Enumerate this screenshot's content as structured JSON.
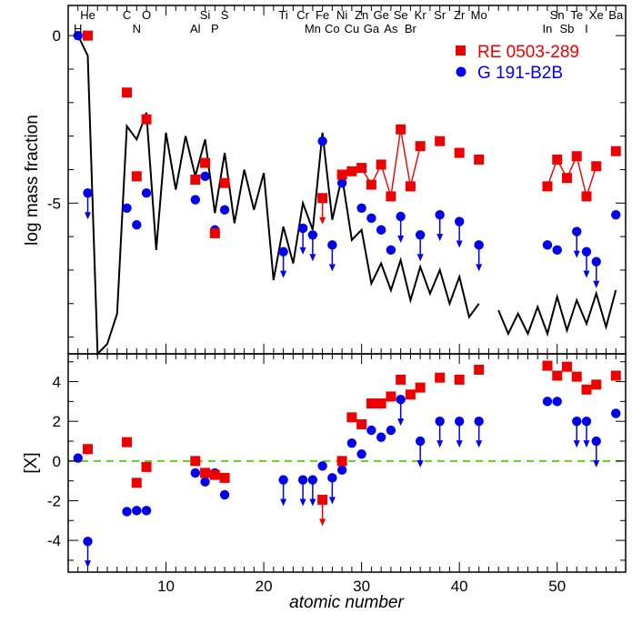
{
  "colors": {
    "re": "#ee0000",
    "g": "#0000ee",
    "zero_line": "#66cc22",
    "model": "#000000"
  },
  "chart_data": {
    "type": "scatter",
    "xlabel": "atomic number",
    "xlim": [
      0,
      57
    ],
    "x_ticks": [
      10,
      20,
      30,
      40,
      50
    ],
    "legend": {
      "position": "top-right",
      "entries": [
        {
          "label": "RE 0503-289",
          "marker": "square",
          "color": "#ee0000"
        },
        {
          "label": "G 191-B2B",
          "marker": "circle",
          "color": "#0000ee"
        }
      ]
    },
    "element_labels": [
      {
        "symbol": "H",
        "z": 1,
        "row": 2
      },
      {
        "symbol": "He",
        "z": 2,
        "row": 1
      },
      {
        "symbol": "C",
        "z": 6,
        "row": 1
      },
      {
        "symbol": "N",
        "z": 7,
        "row": 2
      },
      {
        "symbol": "O",
        "z": 8,
        "row": 1
      },
      {
        "symbol": "Al",
        "z": 13,
        "row": 2
      },
      {
        "symbol": "Si",
        "z": 14,
        "row": 1
      },
      {
        "symbol": "P",
        "z": 15,
        "row": 2
      },
      {
        "symbol": "S",
        "z": 16,
        "row": 1
      },
      {
        "symbol": "Ti",
        "z": 22,
        "row": 1
      },
      {
        "symbol": "Cr",
        "z": 24,
        "row": 1
      },
      {
        "symbol": "Mn",
        "z": 25,
        "row": 2
      },
      {
        "symbol": "Fe",
        "z": 26,
        "row": 1
      },
      {
        "symbol": "Co",
        "z": 27,
        "row": 2
      },
      {
        "symbol": "Ni",
        "z": 28,
        "row": 1
      },
      {
        "symbol": "Cu",
        "z": 29,
        "row": 2
      },
      {
        "symbol": "Zn",
        "z": 30,
        "row": 1
      },
      {
        "symbol": "Ga",
        "z": 31,
        "row": 2
      },
      {
        "symbol": "Ge",
        "z": 32,
        "row": 1
      },
      {
        "symbol": "As",
        "z": 33,
        "row": 2
      },
      {
        "symbol": "Se",
        "z": 34,
        "row": 1
      },
      {
        "symbol": "Br",
        "z": 35,
        "row": 2
      },
      {
        "symbol": "Kr",
        "z": 36,
        "row": 1
      },
      {
        "symbol": "Sr",
        "z": 38,
        "row": 1
      },
      {
        "symbol": "Zr",
        "z": 40,
        "row": 1
      },
      {
        "symbol": "Mo",
        "z": 42,
        "row": 1
      },
      {
        "symbol": "In",
        "z": 49,
        "row": 2
      },
      {
        "symbol": "Sn",
        "z": 50,
        "row": 1
      },
      {
        "symbol": "Sb",
        "z": 51,
        "row": 2
      },
      {
        "symbol": "Te",
        "z": 52,
        "row": 1
      },
      {
        "symbol": "I",
        "z": 53,
        "row": 2
      },
      {
        "symbol": "Xe",
        "z": 54,
        "row": 1
      },
      {
        "symbol": "Ba",
        "z": 56,
        "row": 1
      }
    ],
    "panels": [
      {
        "ylabel": "log mass fraction",
        "ylim": [
          -9.5,
          0.9
        ],
        "y_ticks": [
          0,
          -5
        ],
        "model_solar": {
          "segments": [
            [
              [
                1,
                0
              ],
              [
                2,
                -0.6
              ],
              [
                3,
                -9.5
              ],
              [
                4,
                -9.2
              ],
              [
                5,
                -8.3
              ],
              [
                6,
                -2.7
              ],
              [
                7,
                -3.1
              ],
              [
                8,
                -2.3
              ],
              [
                9,
                -6.4
              ],
              [
                10,
                -2.9
              ],
              [
                11,
                -4.6
              ],
              [
                12,
                -3.0
              ],
              [
                13,
                -4.2
              ],
              [
                14,
                -3.1
              ],
              [
                15,
                -5.3
              ],
              [
                16,
                -3.5
              ],
              [
                17,
                -5.6
              ],
              [
                18,
                -4.0
              ],
              [
                19,
                -5.2
              ],
              [
                20,
                -4.1
              ],
              [
                21,
                -7.3
              ],
              [
                22,
                -5.7
              ],
              [
                23,
                -6.8
              ],
              [
                24,
                -5.0
              ],
              [
                25,
                -5.8
              ],
              [
                26,
                -2.9
              ],
              [
                27,
                -5.5
              ],
              [
                28,
                -4.2
              ],
              [
                29,
                -6.1
              ],
              [
                30,
                -5.8
              ],
              [
                31,
                -7.4
              ],
              [
                32,
                -6.8
              ],
              [
                33,
                -7.6
              ],
              [
                34,
                -6.7
              ],
              [
                35,
                -7.9
              ],
              [
                36,
                -6.9
              ],
              [
                37,
                -7.7
              ],
              [
                38,
                -7.0
              ],
              [
                39,
                -8.0
              ],
              [
                40,
                -7.2
              ],
              [
                41,
                -8.4
              ],
              [
                42,
                -8.0
              ]
            ],
            [
              [
                44,
                -8.2
              ],
              [
                45,
                -8.9
              ],
              [
                46,
                -8.3
              ],
              [
                47,
                -8.9
              ],
              [
                48,
                -8.1
              ],
              [
                49,
                -8.9
              ],
              [
                50,
                -7.8
              ],
              [
                51,
                -8.8
              ],
              [
                52,
                -7.9
              ],
              [
                53,
                -8.6
              ],
              [
                54,
                -7.7
              ],
              [
                55,
                -8.7
              ],
              [
                56,
                -7.6
              ]
            ]
          ]
        },
        "re_0503_289": [
          {
            "z": 2,
            "y": 0.0
          },
          {
            "z": 6,
            "y": -1.7
          },
          {
            "z": 7,
            "y": -4.2
          },
          {
            "z": 8,
            "y": -2.5
          },
          {
            "z": 13,
            "y": -4.3
          },
          {
            "z": 14,
            "y": -3.8
          },
          {
            "z": 15,
            "y": -5.9
          },
          {
            "z": 16,
            "y": -4.4
          },
          {
            "z": 26,
            "y": -4.85,
            "upper_limit": true
          },
          {
            "z": 28,
            "y": -4.15
          },
          {
            "z": 29,
            "y": -4.05
          },
          {
            "z": 30,
            "y": -3.95
          },
          {
            "z": 31,
            "y": -4.45
          },
          {
            "z": 32,
            "y": -3.85
          },
          {
            "z": 33,
            "y": -4.8
          },
          {
            "z": 34,
            "y": -2.8
          },
          {
            "z": 35,
            "y": -4.5
          },
          {
            "z": 36,
            "y": -3.3
          },
          {
            "z": 38,
            "y": -3.15
          },
          {
            "z": 40,
            "y": -3.5
          },
          {
            "z": 42,
            "y": -3.7
          },
          {
            "z": 49,
            "y": -4.5
          },
          {
            "z": 50,
            "y": -3.7
          },
          {
            "z": 51,
            "y": -4.25
          },
          {
            "z": 52,
            "y": -3.6
          },
          {
            "z": 53,
            "y": -4.8
          },
          {
            "z": 54,
            "y": -3.9
          },
          {
            "z": 56,
            "y": -3.45
          }
        ],
        "re_connected": [
          [
            28,
            29,
            30,
            31,
            32,
            33,
            34,
            35,
            36
          ],
          [
            49,
            50,
            51,
            52,
            53,
            54
          ]
        ],
        "g_191_b2b": [
          {
            "z": 1,
            "y": 0.0
          },
          {
            "z": 2,
            "y": -4.7,
            "upper_limit": true
          },
          {
            "z": 6,
            "y": -5.15
          },
          {
            "z": 7,
            "y": -5.65
          },
          {
            "z": 8,
            "y": -4.7
          },
          {
            "z": 13,
            "y": -4.9
          },
          {
            "z": 14,
            "y": -4.2
          },
          {
            "z": 15,
            "y": -5.8
          },
          {
            "z": 16,
            "y": -5.2
          },
          {
            "z": 22,
            "y": -6.45,
            "upper_limit": true
          },
          {
            "z": 24,
            "y": -5.75,
            "upper_limit": true
          },
          {
            "z": 25,
            "y": -5.95,
            "upper_limit": true
          },
          {
            "z": 26,
            "y": -3.15
          },
          {
            "z": 27,
            "y": -6.25,
            "upper_limit": true
          },
          {
            "z": 28,
            "y": -4.4
          },
          {
            "z": 30,
            "y": -5.15
          },
          {
            "z": 31,
            "y": -5.45
          },
          {
            "z": 32,
            "y": -5.8
          },
          {
            "z": 33,
            "y": -6.4
          },
          {
            "z": 34,
            "y": -5.4,
            "upper_limit": true
          },
          {
            "z": 36,
            "y": -5.95,
            "upper_limit": true
          },
          {
            "z": 38,
            "y": -5.35,
            "upper_limit": true
          },
          {
            "z": 40,
            "y": -5.55,
            "upper_limit": true
          },
          {
            "z": 42,
            "y": -6.25,
            "upper_limit": true
          },
          {
            "z": 49,
            "y": -6.25
          },
          {
            "z": 50,
            "y": -6.4
          },
          {
            "z": 52,
            "y": -5.85,
            "upper_limit": true
          },
          {
            "z": 53,
            "y": -6.45,
            "upper_limit": true
          },
          {
            "z": 54,
            "y": -6.75,
            "upper_limit": true
          },
          {
            "z": 56,
            "y": -5.35
          }
        ]
      },
      {
        "ylabel": "[X]",
        "ylim": [
          -5.6,
          5.4
        ],
        "y_ticks": [
          4,
          2,
          0,
          -2,
          -4
        ],
        "reference_line_y": 0,
        "re_0503_289": [
          {
            "z": 2,
            "y": 0.6
          },
          {
            "z": 6,
            "y": 0.95
          },
          {
            "z": 7,
            "y": -1.1
          },
          {
            "z": 8,
            "y": -0.3
          },
          {
            "z": 13,
            "y": 0.0
          },
          {
            "z": 14,
            "y": -0.6
          },
          {
            "z": 15,
            "y": -0.7
          },
          {
            "z": 16,
            "y": -0.85
          },
          {
            "z": 26,
            "y": -1.95,
            "upper_limit": true
          },
          {
            "z": 28,
            "y": 0.0
          },
          {
            "z": 29,
            "y": 2.2
          },
          {
            "z": 30,
            "y": 1.85
          },
          {
            "z": 31,
            "y": 2.9
          },
          {
            "z": 32,
            "y": 2.9
          },
          {
            "z": 33,
            "y": 3.25
          },
          {
            "z": 34,
            "y": 4.1
          },
          {
            "z": 35,
            "y": 3.35
          },
          {
            "z": 36,
            "y": 3.7
          },
          {
            "z": 38,
            "y": 4.2
          },
          {
            "z": 40,
            "y": 4.1
          },
          {
            "z": 42,
            "y": 4.6
          },
          {
            "z": 49,
            "y": 4.8
          },
          {
            "z": 50,
            "y": 4.3
          },
          {
            "z": 51,
            "y": 4.75
          },
          {
            "z": 52,
            "y": 4.25
          },
          {
            "z": 53,
            "y": 3.6
          },
          {
            "z": 54,
            "y": 3.85
          },
          {
            "z": 56,
            "y": 4.3
          }
        ],
        "g_191_b2b": [
          {
            "z": 1,
            "y": 0.15
          },
          {
            "z": 2,
            "y": -4.05,
            "upper_limit": true
          },
          {
            "z": 6,
            "y": -2.55
          },
          {
            "z": 7,
            "y": -2.5
          },
          {
            "z": 8,
            "y": -2.5
          },
          {
            "z": 13,
            "y": -0.6
          },
          {
            "z": 14,
            "y": -1.05
          },
          {
            "z": 15,
            "y": -0.6
          },
          {
            "z": 16,
            "y": -1.7
          },
          {
            "z": 22,
            "y": -0.95,
            "upper_limit": true
          },
          {
            "z": 24,
            "y": -0.95,
            "upper_limit": true
          },
          {
            "z": 25,
            "y": -0.95,
            "upper_limit": true
          },
          {
            "z": 26,
            "y": -0.25
          },
          {
            "z": 27,
            "y": -0.85,
            "upper_limit": true
          },
          {
            "z": 28,
            "y": -0.45
          },
          {
            "z": 29,
            "y": 0.9
          },
          {
            "z": 30,
            "y": 0.35
          },
          {
            "z": 31,
            "y": 1.55
          },
          {
            "z": 32,
            "y": 1.2
          },
          {
            "z": 33,
            "y": 1.55
          },
          {
            "z": 34,
            "y": 3.1,
            "upper_limit": true
          },
          {
            "z": 36,
            "y": 1.0,
            "upper_limit": true
          },
          {
            "z": 38,
            "y": 2.0,
            "upper_limit": true
          },
          {
            "z": 40,
            "y": 2.0,
            "upper_limit": true
          },
          {
            "z": 42,
            "y": 2.0,
            "upper_limit": true
          },
          {
            "z": 49,
            "y": 3.0
          },
          {
            "z": 50,
            "y": 3.0
          },
          {
            "z": 52,
            "y": 2.0,
            "upper_limit": true
          },
          {
            "z": 53,
            "y": 2.0,
            "upper_limit": true
          },
          {
            "z": 54,
            "y": 1.0,
            "upper_limit": true
          },
          {
            "z": 56,
            "y": 2.4
          }
        ]
      }
    ]
  }
}
